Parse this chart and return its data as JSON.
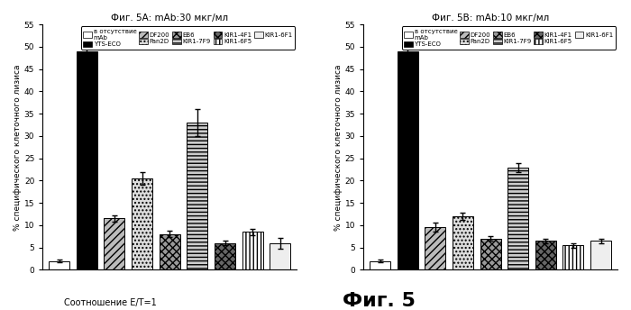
{
  "title_A": "Фиг. 5A: mAb:30 мкг/мл",
  "title_B": "Фиг. 5B: mAb:10 мкг/мл",
  "xlabel": "Соотношение E/T=1",
  "ylabel": "% специфического клеточного лизиса",
  "fig_label": "Фиг. 5",
  "ylim": [
    0,
    55
  ],
  "yticks": [
    0,
    5,
    10,
    15,
    20,
    25,
    30,
    35,
    40,
    45,
    50,
    55
  ],
  "groups_A": [
    {
      "value": 2.0,
      "error": 0.4,
      "hatch": "",
      "color": "#ffffff",
      "edgecolor": "#000000"
    },
    {
      "value": 49.0,
      "error": 2.0,
      "hatch": "",
      "color": "#000000",
      "edgecolor": "#000000"
    },
    {
      "value": 11.5,
      "error": 0.8,
      "hatch": "////",
      "color": "#bbbbbb",
      "edgecolor": "#000000"
    },
    {
      "value": 20.5,
      "error": 1.5,
      "hatch": "....",
      "color": "#dddddd",
      "edgecolor": "#000000"
    },
    {
      "value": 8.0,
      "error": 0.7,
      "hatch": "xxxx",
      "color": "#999999",
      "edgecolor": "#000000"
    },
    {
      "value": 33.0,
      "error": 3.0,
      "hatch": "----",
      "color": "#cccccc",
      "edgecolor": "#000000"
    },
    {
      "value": 6.0,
      "error": 0.5,
      "hatch": "xxxx",
      "color": "#666666",
      "edgecolor": "#000000"
    },
    {
      "value": 8.5,
      "error": 0.7,
      "hatch": "||||",
      "color": "#ffffff",
      "edgecolor": "#000000"
    },
    {
      "value": 6.0,
      "error": 1.2,
      "hatch": "====",
      "color": "#eeeeee",
      "edgecolor": "#000000"
    }
  ],
  "groups_B": [
    {
      "value": 2.0,
      "error": 0.3,
      "hatch": "",
      "color": "#ffffff",
      "edgecolor": "#000000"
    },
    {
      "value": 49.0,
      "error": 2.5,
      "hatch": "",
      "color": "#000000",
      "edgecolor": "#000000"
    },
    {
      "value": 9.5,
      "error": 1.0,
      "hatch": "////",
      "color": "#bbbbbb",
      "edgecolor": "#000000"
    },
    {
      "value": 12.0,
      "error": 0.8,
      "hatch": "....",
      "color": "#dddddd",
      "edgecolor": "#000000"
    },
    {
      "value": 7.0,
      "error": 0.5,
      "hatch": "xxxx",
      "color": "#999999",
      "edgecolor": "#000000"
    },
    {
      "value": 23.0,
      "error": 1.0,
      "hatch": "----",
      "color": "#cccccc",
      "edgecolor": "#000000"
    },
    {
      "value": 6.5,
      "error": 0.5,
      "hatch": "xxxx",
      "color": "#666666",
      "edgecolor": "#000000"
    },
    {
      "value": 5.5,
      "error": 0.5,
      "hatch": "||||",
      "color": "#ffffff",
      "edgecolor": "#000000"
    },
    {
      "value": 6.5,
      "error": 0.5,
      "hatch": "====",
      "color": "#eeeeee",
      "edgecolor": "#000000"
    }
  ],
  "legend_patches": [
    {
      "hatch": "",
      "color": "#ffffff",
      "label": "в отсутствие\nmAb"
    },
    {
      "hatch": "",
      "color": "#000000",
      "label": "YTS-ECO"
    },
    {
      "hatch": "////",
      "color": "#bbbbbb",
      "label": "DF200"
    },
    {
      "hatch": "....",
      "color": "#dddddd",
      "label": "Pan2D"
    },
    {
      "hatch": "xxxx",
      "color": "#999999",
      "label": "EB6"
    },
    {
      "hatch": "----",
      "color": "#cccccc",
      "label": "KIR1-7F9"
    },
    {
      "hatch": "xxxx",
      "color": "#666666",
      "label": "KIR1-4F1"
    },
    {
      "hatch": "||||",
      "color": "#ffffff",
      "label": "KIR1-6F5"
    },
    {
      "hatch": "====",
      "color": "#eeeeee",
      "label": "KIR1-6F1"
    }
  ]
}
